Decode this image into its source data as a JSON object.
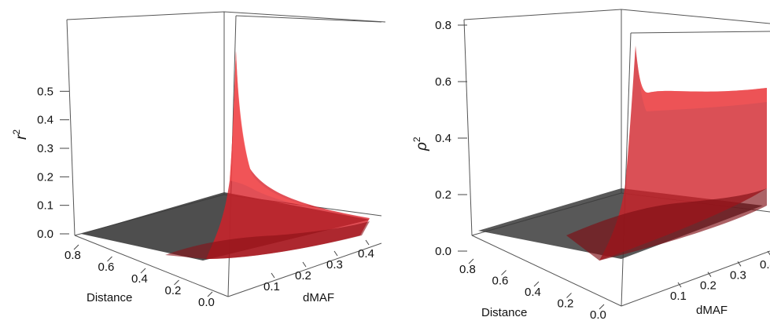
{
  "chart_data": [
    {
      "type": "surface3d",
      "title": "",
      "zlabel": {
        "base": "r",
        "sup": "2"
      },
      "xlabel": "Distance",
      "ylabel": "dMAF",
      "zticks": [
        "0.0",
        "0.1",
        "0.2",
        "0.3",
        "0.4",
        "0.5"
      ],
      "xticks": [
        "0.8",
        "0.6",
        "0.4",
        "0.2",
        "0.0"
      ],
      "yticks": [
        "0.1",
        "0.2",
        "0.3",
        "0.4"
      ],
      "zlim": [
        0,
        0.6
      ],
      "surfaces": [
        {
          "color": "#3a3a3a",
          "description_values": {
            "level": 0.0
          }
        },
        {
          "color": "#d21f26",
          "peak_value": 0.56,
          "peak_at": {
            "distance": 0.0,
            "dMAF": 0.0
          },
          "tail_value": 0.02
        }
      ]
    },
    {
      "type": "surface3d",
      "title": "",
      "zlabel": {
        "base": "ρ",
        "sup": "2"
      },
      "xlabel": "Distance",
      "ylabel": "dMAF",
      "zticks": [
        "0.0",
        "0.2",
        "0.4",
        "0.6",
        "0.8"
      ],
      "xticks": [
        "0.8",
        "0.6",
        "0.4",
        "0.2",
        "0.0"
      ],
      "yticks": [
        "0.1",
        "0.2",
        "0.3",
        "0.4"
      ],
      "zlim": [
        0,
        0.8
      ],
      "surfaces": [
        {
          "color": "#3a3a3a",
          "description_values": {
            "level": 0.0
          }
        },
        {
          "color": "#d21f26",
          "peak_value": 0.72,
          "peak_at": {
            "distance": 0.0,
            "dMAF": 0.0
          },
          "plateau_value": 0.55
        }
      ]
    }
  ]
}
